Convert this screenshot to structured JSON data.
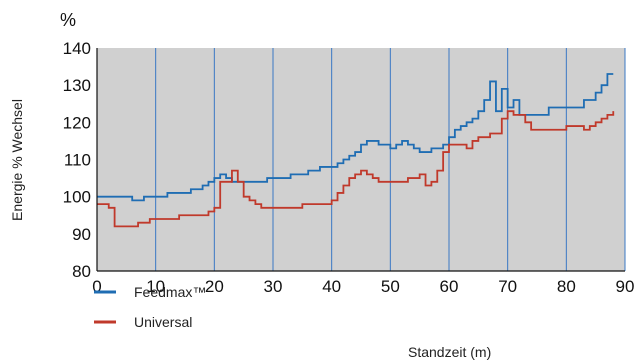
{
  "chart_data": {
    "type": "line",
    "unit_label": "%",
    "xlabel": "Standzeit (m)",
    "ylabel": "Energie % Wechsel",
    "xlim": [
      0,
      90
    ],
    "ylim": [
      80,
      140
    ],
    "x_ticks": [
      0,
      10,
      20,
      30,
      40,
      50,
      60,
      70,
      80,
      90
    ],
    "y_ticks": [
      80,
      90,
      100,
      110,
      120,
      130,
      140
    ],
    "grid": "vertical",
    "plot_background": "#d0d0d0",
    "legend_position": "bottom-left",
    "series": [
      {
        "name": "Feedmax™",
        "color": "#1f6db3",
        "x": [
          0,
          1,
          2,
          3,
          4,
          5,
          6,
          7,
          8,
          9,
          10,
          11,
          12,
          13,
          14,
          15,
          16,
          17,
          18,
          19,
          20,
          21,
          22,
          23,
          24,
          25,
          26,
          27,
          28,
          29,
          30,
          31,
          32,
          33,
          34,
          35,
          36,
          37,
          38,
          39,
          40,
          41,
          42,
          43,
          44,
          45,
          46,
          47,
          48,
          49,
          50,
          51,
          52,
          53,
          54,
          55,
          56,
          57,
          58,
          59,
          60,
          61,
          62,
          63,
          64,
          65,
          66,
          67,
          68,
          69,
          70,
          71,
          72,
          73,
          74,
          75,
          76,
          77,
          78,
          79,
          80,
          81,
          82,
          83,
          84,
          85,
          86,
          87,
          88
        ],
        "values": [
          100,
          100,
          100,
          100,
          100,
          100,
          99,
          99,
          100,
          100,
          100,
          100,
          101,
          101,
          101,
          101,
          102,
          102,
          103,
          104,
          105,
          106,
          105,
          104,
          104,
          104,
          104,
          104,
          104,
          105,
          105,
          105,
          105,
          106,
          106,
          106,
          107,
          107,
          108,
          108,
          108,
          109,
          110,
          111,
          112,
          114,
          115,
          115,
          114,
          114,
          113,
          114,
          115,
          114,
          113,
          112,
          112,
          113,
          113,
          114,
          116,
          118,
          119,
          120,
          121,
          123,
          126,
          131,
          123,
          129,
          124,
          126,
          122,
          122,
          122,
          122,
          122,
          124,
          124,
          124,
          124,
          124,
          124,
          126,
          126,
          128,
          130,
          133,
          133
        ]
      },
      {
        "name": "Universal",
        "color": "#c0392b",
        "x": [
          0,
          1,
          2,
          3,
          4,
          5,
          6,
          7,
          8,
          9,
          10,
          11,
          12,
          13,
          14,
          15,
          16,
          17,
          18,
          19,
          20,
          21,
          22,
          23,
          24,
          25,
          26,
          27,
          28,
          29,
          30,
          31,
          32,
          33,
          34,
          35,
          36,
          37,
          38,
          39,
          40,
          41,
          42,
          43,
          44,
          45,
          46,
          47,
          48,
          49,
          50,
          51,
          52,
          53,
          54,
          55,
          56,
          57,
          58,
          59,
          60,
          61,
          62,
          63,
          64,
          65,
          66,
          67,
          68,
          69,
          70,
          71,
          72,
          73,
          74,
          75,
          76,
          77,
          78,
          79,
          80,
          81,
          82,
          83,
          84,
          85,
          86,
          87,
          88
        ],
        "values": [
          98,
          98,
          97,
          92,
          92,
          92,
          92,
          93,
          93,
          94,
          94,
          94,
          94,
          94,
          95,
          95,
          95,
          95,
          95,
          96,
          97,
          104,
          104,
          107,
          104,
          100,
          99,
          98,
          97,
          97,
          97,
          97,
          97,
          97,
          97,
          98,
          98,
          98,
          98,
          98,
          99,
          101,
          103,
          105,
          106,
          107,
          106,
          105,
          104,
          104,
          104,
          104,
          104,
          105,
          105,
          106,
          103,
          104,
          107,
          112,
          114,
          114,
          114,
          113,
          115,
          116,
          116,
          117,
          117,
          121,
          123,
          122,
          122,
          120,
          118,
          118,
          118,
          118,
          118,
          118,
          119,
          119,
          119,
          118,
          119,
          120,
          121,
          122,
          123
        ]
      }
    ]
  }
}
